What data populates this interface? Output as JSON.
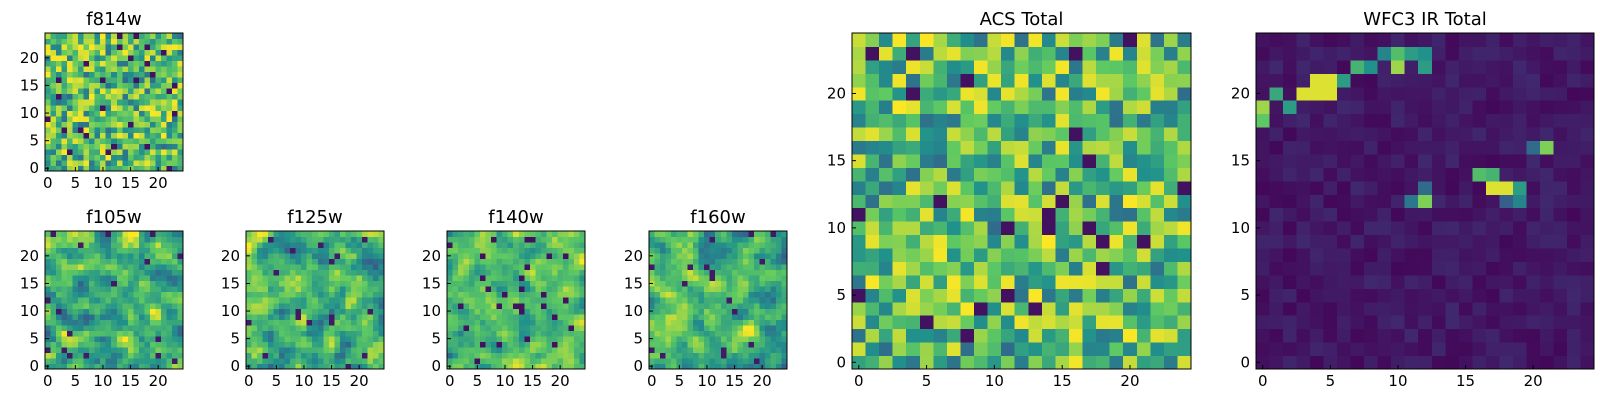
{
  "figure": {
    "colormap": [
      "#440154",
      "#3b528b",
      "#21918c",
      "#5ec962",
      "#fde725"
    ]
  },
  "chart_data": [
    {
      "type": "heatmap",
      "id": "f814w",
      "title": "f814w",
      "n": 25,
      "xticks": [
        0,
        5,
        10,
        15,
        20
      ],
      "yticks": [
        0,
        5,
        10,
        15,
        20
      ],
      "xlim": [
        0,
        24
      ],
      "ylim": [
        0,
        24
      ],
      "seed": 11,
      "pattern": "noise_bright",
      "smooth": 0
    },
    {
      "type": "heatmap",
      "id": "f105w",
      "title": "f105w",
      "n": 25,
      "xticks": [
        0,
        5,
        10,
        15,
        20
      ],
      "yticks": [
        0,
        5,
        10,
        15,
        20
      ],
      "xlim": [
        0,
        24
      ],
      "ylim": [
        0,
        24
      ],
      "seed": 23,
      "pattern": "noise_mid",
      "smooth": 1
    },
    {
      "type": "heatmap",
      "id": "f125w",
      "title": "f125w",
      "n": 25,
      "xticks": [
        0,
        5,
        10,
        15,
        20
      ],
      "yticks": [
        0,
        5,
        10,
        15,
        20
      ],
      "xlim": [
        0,
        24
      ],
      "ylim": [
        0,
        24
      ],
      "seed": 37,
      "pattern": "noise_mid",
      "smooth": 1
    },
    {
      "type": "heatmap",
      "id": "f140w",
      "title": "f140w",
      "n": 25,
      "xticks": [
        0,
        5,
        10,
        15,
        20
      ],
      "yticks": [
        0,
        5,
        10,
        15,
        20
      ],
      "xlim": [
        0,
        24
      ],
      "ylim": [
        0,
        24
      ],
      "seed": 41,
      "pattern": "noise_bright",
      "smooth": 1
    },
    {
      "type": "heatmap",
      "id": "f160w",
      "title": "f160w",
      "n": 25,
      "xticks": [
        0,
        5,
        10,
        15,
        20
      ],
      "yticks": [
        0,
        5,
        10,
        15,
        20
      ],
      "xlim": [
        0,
        24
      ],
      "ylim": [
        0,
        24
      ],
      "seed": 53,
      "pattern": "noise_mid",
      "smooth": 1
    },
    {
      "type": "heatmap",
      "id": "acs-total",
      "title": "ACS Total",
      "n": 25,
      "xticks": [
        0,
        5,
        10,
        15,
        20
      ],
      "yticks": [
        0,
        5,
        10,
        15,
        20
      ],
      "xlim": [
        0,
        24
      ],
      "ylim": [
        0,
        24
      ],
      "seed": 67,
      "pattern": "noise_bright",
      "smooth": 0
    },
    {
      "type": "heatmap",
      "id": "wfc3-ir-total",
      "title": "WFC3 IR Total",
      "n": 25,
      "xticks": [
        0,
        5,
        10,
        15,
        20
      ],
      "yticks": [
        0,
        5,
        10,
        15,
        20
      ],
      "xlim": [
        0,
        24
      ],
      "ylim": [
        0,
        24
      ],
      "seed": 79,
      "pattern": "dark_with_sources",
      "smooth": 0,
      "sources": [
        {
          "x": 0,
          "y": 19,
          "v": 0.85
        },
        {
          "x": 0,
          "y": 18,
          "v": 0.75
        },
        {
          "x": 1,
          "y": 20,
          "v": 0.6
        },
        {
          "x": 2,
          "y": 19,
          "v": 0.55
        },
        {
          "x": 3,
          "y": 20,
          "v": 0.95
        },
        {
          "x": 4,
          "y": 20,
          "v": 0.95
        },
        {
          "x": 5,
          "y": 20,
          "v": 0.95
        },
        {
          "x": 4,
          "y": 21,
          "v": 0.95
        },
        {
          "x": 5,
          "y": 21,
          "v": 0.95
        },
        {
          "x": 6,
          "y": 21,
          "v": 0.55
        },
        {
          "x": 7,
          "y": 22,
          "v": 0.65
        },
        {
          "x": 8,
          "y": 22,
          "v": 0.5
        },
        {
          "x": 9,
          "y": 23,
          "v": 0.45
        },
        {
          "x": 10,
          "y": 23,
          "v": 0.7
        },
        {
          "x": 10,
          "y": 22,
          "v": 0.85
        },
        {
          "x": 11,
          "y": 23,
          "v": 0.55
        },
        {
          "x": 12,
          "y": 23,
          "v": 0.5
        },
        {
          "x": 12,
          "y": 22,
          "v": 0.55
        },
        {
          "x": 21,
          "y": 16,
          "v": 0.8
        },
        {
          "x": 20,
          "y": 16,
          "v": 0.35
        },
        {
          "x": 16,
          "y": 14,
          "v": 0.7
        },
        {
          "x": 17,
          "y": 14,
          "v": 0.65
        },
        {
          "x": 17,
          "y": 13,
          "v": 0.95
        },
        {
          "x": 18,
          "y": 13,
          "v": 0.95
        },
        {
          "x": 19,
          "y": 13,
          "v": 0.55
        },
        {
          "x": 19,
          "y": 12,
          "v": 0.45
        },
        {
          "x": 18,
          "y": 12,
          "v": 0.3
        },
        {
          "x": 12,
          "y": 12,
          "v": 0.8
        },
        {
          "x": 11,
          "y": 12,
          "v": 0.4
        },
        {
          "x": 12,
          "y": 13,
          "v": 0.35
        }
      ]
    }
  ]
}
